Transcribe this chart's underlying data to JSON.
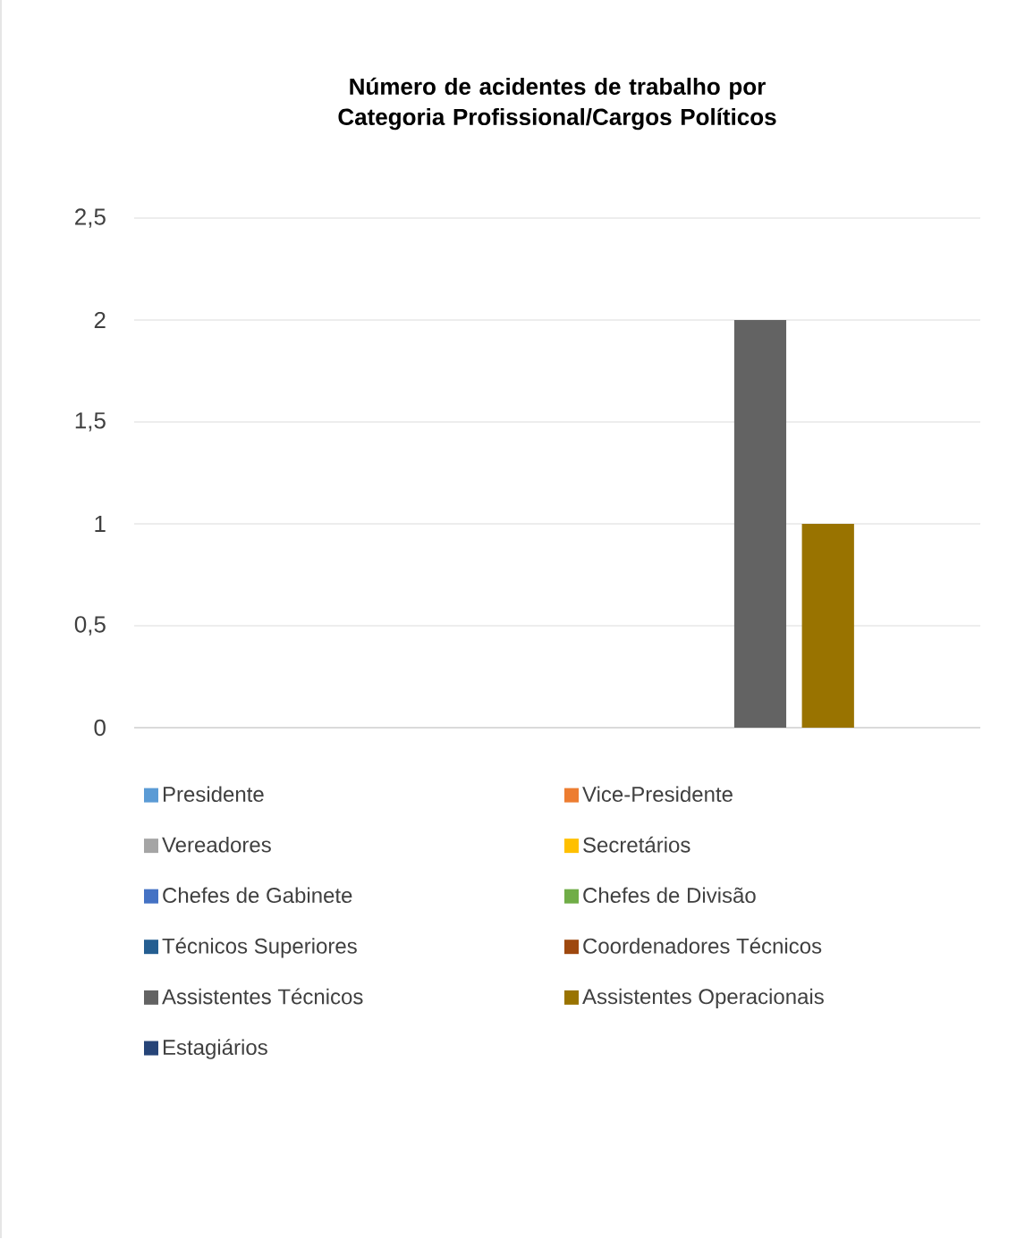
{
  "chart_data": {
    "type": "bar",
    "title": "Número de acidentes de trabalho por Categoria Profissional/Cargos Políticos",
    "categories": [
      null
    ],
    "series": [
      {
        "name": "Presidente",
        "color": "#5b9bd5",
        "values": [
          0
        ]
      },
      {
        "name": "Vice-Presidente",
        "color": "#ed7d31",
        "values": [
          0
        ]
      },
      {
        "name": "Vereadores",
        "color": "#a5a5a5",
        "values": [
          0
        ]
      },
      {
        "name": "Secretários",
        "color": "#ffc000",
        "values": [
          0
        ]
      },
      {
        "name": "Chefes de Gabinete",
        "color": "#4472c4",
        "values": [
          0
        ]
      },
      {
        "name": "Chefes de Divisão",
        "color": "#70ad47",
        "values": [
          0
        ]
      },
      {
        "name": "Técnicos Superiores",
        "color": "#255e91",
        "values": [
          0
        ]
      },
      {
        "name": "Coordenadores Técnicos",
        "color": "#9e480e",
        "values": [
          0
        ]
      },
      {
        "name": "Assistentes Técnicos",
        "color": "#636363",
        "values": [
          2
        ]
      },
      {
        "name": "Assistentes Operacionais",
        "color": "#997300",
        "values": [
          1
        ]
      },
      {
        "name": "Estagiários",
        "color": "#264478",
        "values": [
          0
        ]
      }
    ],
    "ylim": [
      0,
      2.5
    ],
    "yticks": [
      0,
      {
        "value": 0.5,
        "label": "0,5"
      },
      1,
      {
        "value": 1.5,
        "label": "1,5"
      },
      2,
      {
        "value": 2.5,
        "label": "2,5"
      }
    ],
    "grid": "y",
    "legend": "bottom"
  }
}
